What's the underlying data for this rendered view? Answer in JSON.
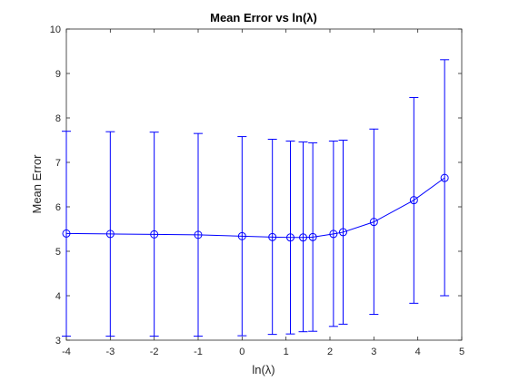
{
  "chart_data": {
    "type": "line",
    "title": "Mean Error vs ln(λ)",
    "xlabel": "ln(λ)",
    "ylabel": "Mean Error",
    "xlim": [
      -4,
      5
    ],
    "ylim": [
      3,
      10
    ],
    "xticks": [
      "-4",
      "-3",
      "-2",
      "-1",
      "0",
      "1",
      "2",
      "3",
      "4",
      "5"
    ],
    "yticks": [
      "3",
      "4",
      "5",
      "6",
      "7",
      "8",
      "9",
      "10"
    ],
    "grid": false,
    "marker": "circle",
    "color": "#0000ff",
    "series": [
      {
        "x": [
          -4,
          -3,
          -2,
          -1,
          0,
          0.69,
          1.1,
          1.39,
          1.61,
          2.08,
          2.3,
          3,
          3.91,
          4.61
        ],
        "y": [
          5.4,
          5.39,
          5.38,
          5.37,
          5.34,
          5.32,
          5.31,
          5.31,
          5.32,
          5.39,
          5.43,
          5.66,
          6.15,
          6.65
        ],
        "err_low": [
          3.09,
          3.09,
          3.09,
          3.09,
          3.1,
          3.13,
          3.14,
          3.19,
          3.2,
          3.31,
          3.36,
          3.58,
          3.83,
          4.0
        ],
        "err_high": [
          7.7,
          7.69,
          7.68,
          7.65,
          7.58,
          7.52,
          7.48,
          7.46,
          7.44,
          7.48,
          7.5,
          7.75,
          8.46,
          9.31
        ]
      }
    ]
  }
}
